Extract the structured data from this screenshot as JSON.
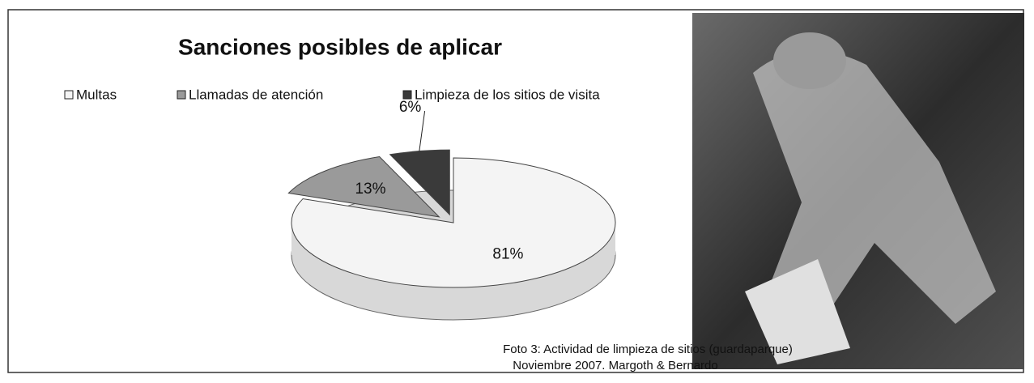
{
  "chart_data": {
    "type": "pie",
    "title": "Sanciones posibles de aplicar",
    "categories": [
      "Multas",
      "Llamadas de atención",
      "Limpieza de los sitios de visita"
    ],
    "values": [
      81,
      13,
      6
    ],
    "value_labels": [
      "81%",
      "13%",
      "6%"
    ],
    "colors": [
      "#f4f4f4",
      "#9a9a9a",
      "#3a3a3a"
    ],
    "legend": "top"
  },
  "caption": [
    "Foto 3: Actividad de limpieza de sitios (guardaparque)",
    "Noviembre 2007. Margoth & Bernardo"
  ]
}
